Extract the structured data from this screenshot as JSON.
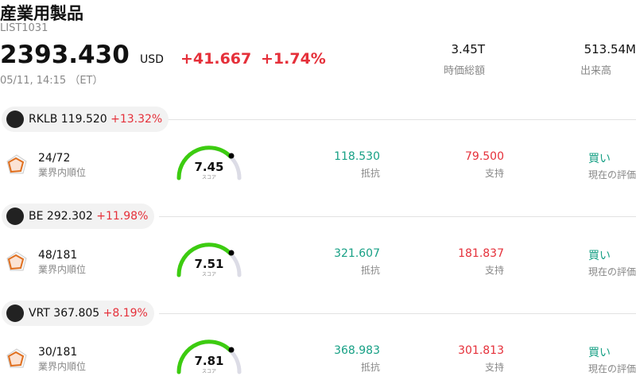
{
  "header": {
    "title": "産業用製品",
    "code": "LIST1031",
    "price": "2393.430",
    "currency": "USD",
    "change": "+41.667",
    "change_percent": "+1.74%",
    "datetime": "05/11, 14:15 （ET）",
    "stats": [
      {
        "value": "3.45T",
        "label": "時価総額"
      },
      {
        "value": "513.54M",
        "label": "出来高"
      }
    ]
  },
  "stocks": [
    {
      "ticker": "RKLB",
      "price": "119.520",
      "change": "+13.32%",
      "rank": "24/72",
      "rank_label": "業界内順位",
      "score": "7.45",
      "score_label": "スコア",
      "resistance": "118.530",
      "resistance_label": "抵抗",
      "support": "79.500",
      "support_label": "支持",
      "rating": "買い",
      "rating_label": "現在の評価"
    },
    {
      "ticker": "BE",
      "price": "292.302",
      "change": "+11.98%",
      "rank": "48/181",
      "rank_label": "業界内順位",
      "score": "7.51",
      "score_label": "スコア",
      "resistance": "321.607",
      "resistance_label": "抵抗",
      "support": "181.837",
      "support_label": "支持",
      "rating": "買い",
      "rating_label": "現在の評価"
    },
    {
      "ticker": "VRT",
      "price": "367.805",
      "change": "+8.19%",
      "rank": "30/181",
      "rank_label": "業界内順位",
      "score": "7.81",
      "score_label": "スコア",
      "resistance": "368.983",
      "resistance_label": "抵抗",
      "support": "301.813",
      "support_label": "支持",
      "rating": "買い",
      "rating_label": "現在の評価"
    }
  ]
}
